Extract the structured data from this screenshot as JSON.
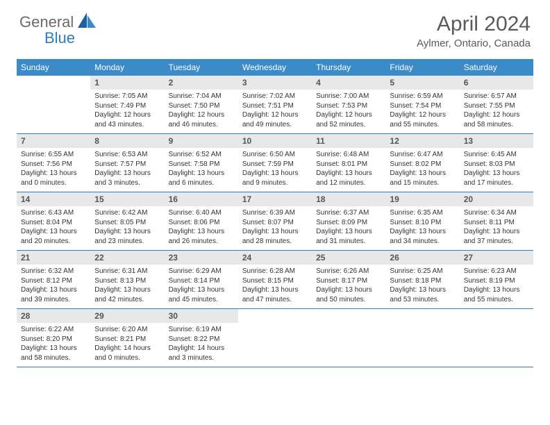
{
  "logo": {
    "text1": "General",
    "text2": "Blue"
  },
  "title": "April 2024",
  "location": "Aylmer, Ontario, Canada",
  "colors": {
    "header_bg": "#3b8bc9",
    "header_text": "#ffffff",
    "daynum_bg": "#e8e8e8",
    "border": "#2f7bbf",
    "logo_gray": "#6a6a6a",
    "logo_blue": "#2f7bbf",
    "title_color": "#5a5a5a",
    "body_text": "#333333"
  },
  "day_headers": [
    "Sunday",
    "Monday",
    "Tuesday",
    "Wednesday",
    "Thursday",
    "Friday",
    "Saturday"
  ],
  "weeks": [
    [
      {
        "empty": true
      },
      {
        "n": "1",
        "sunrise": "7:05 AM",
        "sunset": "7:49 PM",
        "daylight": "12 hours and 43 minutes."
      },
      {
        "n": "2",
        "sunrise": "7:04 AM",
        "sunset": "7:50 PM",
        "daylight": "12 hours and 46 minutes."
      },
      {
        "n": "3",
        "sunrise": "7:02 AM",
        "sunset": "7:51 PM",
        "daylight": "12 hours and 49 minutes."
      },
      {
        "n": "4",
        "sunrise": "7:00 AM",
        "sunset": "7:53 PM",
        "daylight": "12 hours and 52 minutes."
      },
      {
        "n": "5",
        "sunrise": "6:59 AM",
        "sunset": "7:54 PM",
        "daylight": "12 hours and 55 minutes."
      },
      {
        "n": "6",
        "sunrise": "6:57 AM",
        "sunset": "7:55 PM",
        "daylight": "12 hours and 58 minutes."
      }
    ],
    [
      {
        "n": "7",
        "sunrise": "6:55 AM",
        "sunset": "7:56 PM",
        "daylight": "13 hours and 0 minutes."
      },
      {
        "n": "8",
        "sunrise": "6:53 AM",
        "sunset": "7:57 PM",
        "daylight": "13 hours and 3 minutes."
      },
      {
        "n": "9",
        "sunrise": "6:52 AM",
        "sunset": "7:58 PM",
        "daylight": "13 hours and 6 minutes."
      },
      {
        "n": "10",
        "sunrise": "6:50 AM",
        "sunset": "7:59 PM",
        "daylight": "13 hours and 9 minutes."
      },
      {
        "n": "11",
        "sunrise": "6:48 AM",
        "sunset": "8:01 PM",
        "daylight": "13 hours and 12 minutes."
      },
      {
        "n": "12",
        "sunrise": "6:47 AM",
        "sunset": "8:02 PM",
        "daylight": "13 hours and 15 minutes."
      },
      {
        "n": "13",
        "sunrise": "6:45 AM",
        "sunset": "8:03 PM",
        "daylight": "13 hours and 17 minutes."
      }
    ],
    [
      {
        "n": "14",
        "sunrise": "6:43 AM",
        "sunset": "8:04 PM",
        "daylight": "13 hours and 20 minutes."
      },
      {
        "n": "15",
        "sunrise": "6:42 AM",
        "sunset": "8:05 PM",
        "daylight": "13 hours and 23 minutes."
      },
      {
        "n": "16",
        "sunrise": "6:40 AM",
        "sunset": "8:06 PM",
        "daylight": "13 hours and 26 minutes."
      },
      {
        "n": "17",
        "sunrise": "6:39 AM",
        "sunset": "8:07 PM",
        "daylight": "13 hours and 28 minutes."
      },
      {
        "n": "18",
        "sunrise": "6:37 AM",
        "sunset": "8:09 PM",
        "daylight": "13 hours and 31 minutes."
      },
      {
        "n": "19",
        "sunrise": "6:35 AM",
        "sunset": "8:10 PM",
        "daylight": "13 hours and 34 minutes."
      },
      {
        "n": "20",
        "sunrise": "6:34 AM",
        "sunset": "8:11 PM",
        "daylight": "13 hours and 37 minutes."
      }
    ],
    [
      {
        "n": "21",
        "sunrise": "6:32 AM",
        "sunset": "8:12 PM",
        "daylight": "13 hours and 39 minutes."
      },
      {
        "n": "22",
        "sunrise": "6:31 AM",
        "sunset": "8:13 PM",
        "daylight": "13 hours and 42 minutes."
      },
      {
        "n": "23",
        "sunrise": "6:29 AM",
        "sunset": "8:14 PM",
        "daylight": "13 hours and 45 minutes."
      },
      {
        "n": "24",
        "sunrise": "6:28 AM",
        "sunset": "8:15 PM",
        "daylight": "13 hours and 47 minutes."
      },
      {
        "n": "25",
        "sunrise": "6:26 AM",
        "sunset": "8:17 PM",
        "daylight": "13 hours and 50 minutes."
      },
      {
        "n": "26",
        "sunrise": "6:25 AM",
        "sunset": "8:18 PM",
        "daylight": "13 hours and 53 minutes."
      },
      {
        "n": "27",
        "sunrise": "6:23 AM",
        "sunset": "8:19 PM",
        "daylight": "13 hours and 55 minutes."
      }
    ],
    [
      {
        "n": "28",
        "sunrise": "6:22 AM",
        "sunset": "8:20 PM",
        "daylight": "13 hours and 58 minutes."
      },
      {
        "n": "29",
        "sunrise": "6:20 AM",
        "sunset": "8:21 PM",
        "daylight": "14 hours and 0 minutes."
      },
      {
        "n": "30",
        "sunrise": "6:19 AM",
        "sunset": "8:22 PM",
        "daylight": "14 hours and 3 minutes."
      },
      {
        "empty": true
      },
      {
        "empty": true
      },
      {
        "empty": true
      },
      {
        "empty": true
      }
    ]
  ],
  "labels": {
    "sunrise": "Sunrise:",
    "sunset": "Sunset:",
    "daylight": "Daylight:"
  }
}
